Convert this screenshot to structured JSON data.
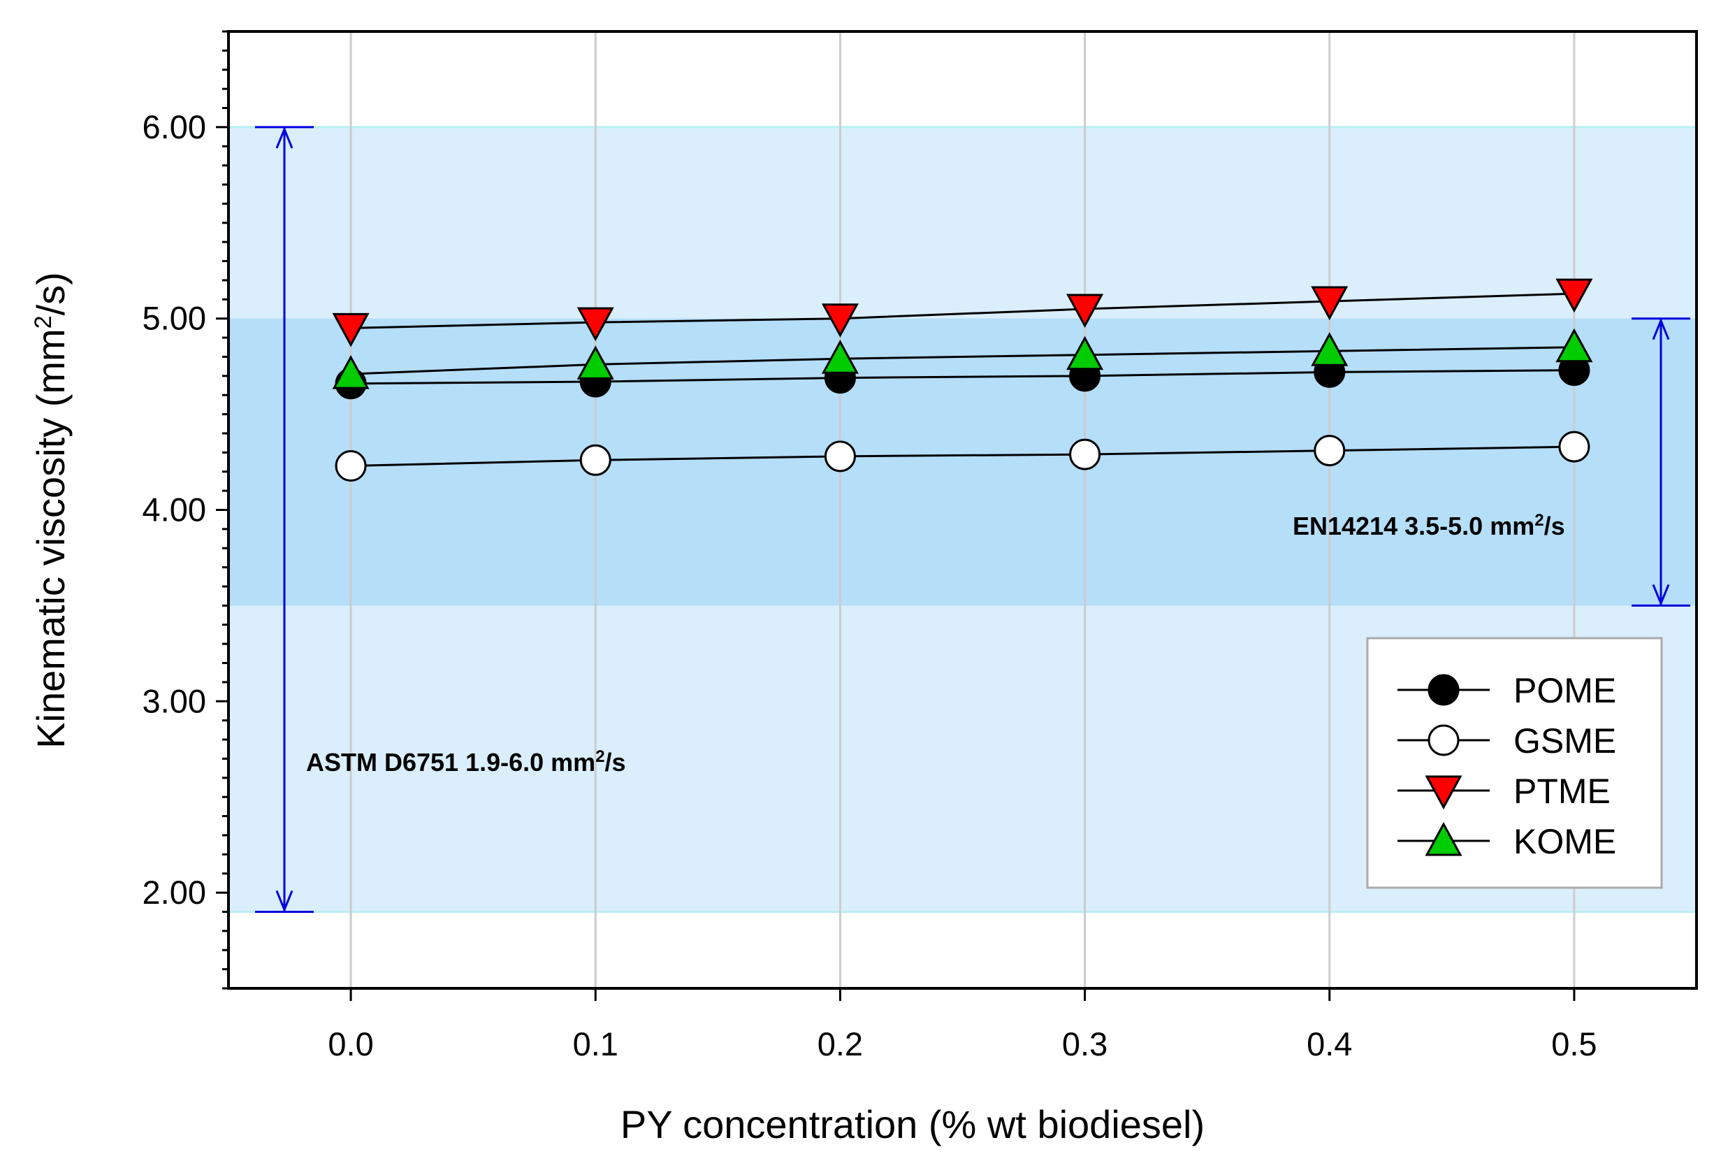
{
  "chart_data": {
    "type": "line",
    "title": "",
    "xlabel": "PY concentration (% wt biodiesel)",
    "ylabel": {
      "pre": "Kinematic viscosity (mm",
      "sup": "2",
      "post": "/s)"
    },
    "x": [
      0.0,
      0.1,
      0.2,
      0.3,
      0.4,
      0.5
    ],
    "xticks": [
      "0.0",
      "0.1",
      "0.2",
      "0.3",
      "0.4",
      "0.5"
    ],
    "xlim": [
      -0.05,
      0.55
    ],
    "yticks": [
      "2.00",
      "3.00",
      "4.00",
      "5.00",
      "6.00"
    ],
    "ylim": [
      1.5,
      6.5
    ],
    "grid": "vertical",
    "legend_position": "bottom-right",
    "series": [
      {
        "name": "POME",
        "marker": "circle",
        "fill": "#000000",
        "values": [
          4.66,
          4.67,
          4.69,
          4.7,
          4.72,
          4.73
        ]
      },
      {
        "name": "GSME",
        "marker": "circle",
        "fill": "#ffffff",
        "values": [
          4.23,
          4.26,
          4.28,
          4.29,
          4.31,
          4.33
        ]
      },
      {
        "name": "PTME",
        "marker": "triangle-down",
        "fill": "#ff0000",
        "values": [
          4.95,
          4.98,
          5.0,
          5.05,
          5.09,
          5.13
        ]
      },
      {
        "name": "KOME",
        "marker": "triangle-up",
        "fill": "#00cc00",
        "values": [
          4.71,
          4.76,
          4.79,
          4.81,
          4.83,
          4.85
        ]
      }
    ],
    "bands": [
      {
        "name": "ASTM D6751",
        "range": [
          1.9,
          6.0
        ],
        "color": "#daeefc",
        "label_pre": "ASTM D6751 1.9-6.0 mm",
        "label_sup": "2",
        "label_post": "/s"
      },
      {
        "name": "EN14214",
        "range": [
          3.5,
          5.0
        ],
        "color": "#b5def9",
        "label_pre": "EN14214 3.5-5.0 mm",
        "label_sup": "2",
        "label_post": "/s"
      }
    ],
    "colors": {
      "arrow": "#0000dd",
      "grid": "#cccccc",
      "band_edge": "#b8f0f4"
    }
  }
}
